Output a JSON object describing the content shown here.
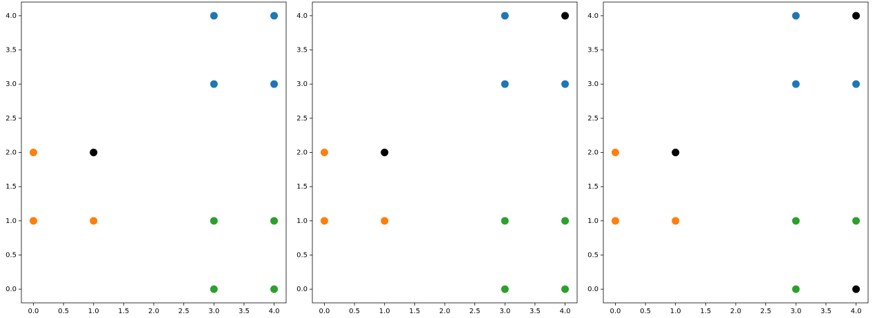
{
  "chart_data": [
    {
      "type": "scatter",
      "series": [
        {
          "color": "#1f77b4",
          "x": [
            3,
            4,
            3,
            4
          ],
          "y": [
            4,
            4,
            3,
            3
          ]
        },
        {
          "color": "#ff7f0e",
          "x": [
            0,
            0,
            1
          ],
          "y": [
            2,
            1,
            1
          ]
        },
        {
          "color": "#2ca02c",
          "x": [
            3,
            4,
            3,
            4
          ],
          "y": [
            1,
            1,
            0,
            0
          ]
        },
        {
          "color": "#000000",
          "x": [
            1
          ],
          "y": [
            2
          ]
        }
      ],
      "xlim": [
        -0.2,
        4.2
      ],
      "ylim": [
        -0.2,
        4.2
      ],
      "xticks": [
        {
          "value": 0,
          "label": "0.0"
        },
        {
          "value": 0.5,
          "label": "0.5"
        },
        {
          "value": 1,
          "label": "1.0"
        },
        {
          "value": 1.5,
          "label": "1.5"
        },
        {
          "value": 2,
          "label": "2.0"
        },
        {
          "value": 2.5,
          "label": "2.5"
        },
        {
          "value": 3,
          "label": "3.0"
        },
        {
          "value": 3.5,
          "label": "3.5"
        },
        {
          "value": 4,
          "label": "4.0"
        }
      ],
      "yticks": [
        {
          "value": 0,
          "label": "0.0"
        },
        {
          "value": 0.5,
          "label": "0.5"
        },
        {
          "value": 1,
          "label": "1.0"
        },
        {
          "value": 1.5,
          "label": "1.5"
        },
        {
          "value": 2,
          "label": "2.0"
        },
        {
          "value": 2.5,
          "label": "2.5"
        },
        {
          "value": 3,
          "label": "3.0"
        },
        {
          "value": 3.5,
          "label": "3.5"
        },
        {
          "value": 4,
          "label": "4.0"
        }
      ]
    },
    {
      "type": "scatter",
      "series": [
        {
          "color": "#1f77b4",
          "x": [
            3,
            3,
            4
          ],
          "y": [
            4,
            3,
            3
          ]
        },
        {
          "color": "#ff7f0e",
          "x": [
            0,
            0,
            1
          ],
          "y": [
            2,
            1,
            1
          ]
        },
        {
          "color": "#2ca02c",
          "x": [
            3,
            4,
            3,
            4
          ],
          "y": [
            1,
            1,
            0,
            0
          ]
        },
        {
          "color": "#000000",
          "x": [
            4,
            1
          ],
          "y": [
            4,
            2
          ]
        }
      ],
      "xlim": [
        -0.2,
        4.2
      ],
      "ylim": [
        -0.2,
        4.2
      ],
      "xticks": [
        {
          "value": 0,
          "label": "0.0"
        },
        {
          "value": 0.5,
          "label": "0.5"
        },
        {
          "value": 1,
          "label": "1.0"
        },
        {
          "value": 1.5,
          "label": "1.5"
        },
        {
          "value": 2,
          "label": "2.0"
        },
        {
          "value": 2.5,
          "label": "2.5"
        },
        {
          "value": 3,
          "label": "3.0"
        },
        {
          "value": 3.5,
          "label": "3.5"
        },
        {
          "value": 4,
          "label": "4.0"
        }
      ],
      "yticks": [
        {
          "value": 0,
          "label": "0.0"
        },
        {
          "value": 0.5,
          "label": "0.5"
        },
        {
          "value": 1,
          "label": "1.0"
        },
        {
          "value": 1.5,
          "label": "1.5"
        },
        {
          "value": 2,
          "label": "2.0"
        },
        {
          "value": 2.5,
          "label": "2.5"
        },
        {
          "value": 3,
          "label": "3.0"
        },
        {
          "value": 3.5,
          "label": "3.5"
        },
        {
          "value": 4,
          "label": "4.0"
        }
      ]
    },
    {
      "type": "scatter",
      "series": [
        {
          "color": "#1f77b4",
          "x": [
            3,
            3,
            4
          ],
          "y": [
            4,
            3,
            3
          ]
        },
        {
          "color": "#ff7f0e",
          "x": [
            0,
            0,
            1
          ],
          "y": [
            2,
            1,
            1
          ]
        },
        {
          "color": "#2ca02c",
          "x": [
            3,
            4,
            3
          ],
          "y": [
            1,
            1,
            0
          ]
        },
        {
          "color": "#000000",
          "x": [
            4,
            1,
            4
          ],
          "y": [
            4,
            2,
            0
          ]
        }
      ],
      "xlim": [
        -0.2,
        4.2
      ],
      "ylim": [
        -0.2,
        4.2
      ],
      "xticks": [
        {
          "value": 0,
          "label": "0.0"
        },
        {
          "value": 0.5,
          "label": "0.5"
        },
        {
          "value": 1,
          "label": "1.0"
        },
        {
          "value": 1.5,
          "label": "1.5"
        },
        {
          "value": 2,
          "label": "2.0"
        },
        {
          "value": 2.5,
          "label": "2.5"
        },
        {
          "value": 3,
          "label": "3.0"
        },
        {
          "value": 3.5,
          "label": "3.5"
        },
        {
          "value": 4,
          "label": "4.0"
        }
      ],
      "yticks": [
        {
          "value": 0,
          "label": "0.0"
        },
        {
          "value": 0.5,
          "label": "0.5"
        },
        {
          "value": 1,
          "label": "1.0"
        },
        {
          "value": 1.5,
          "label": "1.5"
        },
        {
          "value": 2,
          "label": "2.0"
        },
        {
          "value": 2.5,
          "label": "2.5"
        },
        {
          "value": 3,
          "label": "3.0"
        },
        {
          "value": 3.5,
          "label": "3.5"
        },
        {
          "value": 4,
          "label": "4.0"
        }
      ]
    }
  ]
}
